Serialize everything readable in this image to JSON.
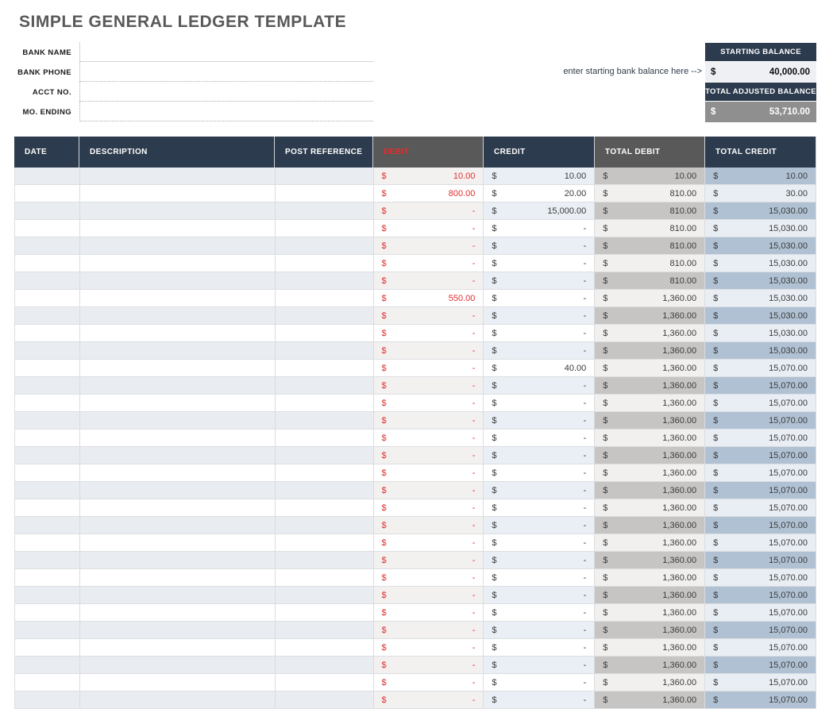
{
  "page": {
    "title": "SIMPLE GENERAL LEDGER TEMPLATE"
  },
  "form": {
    "fields": [
      {
        "label": "BANK NAME",
        "value": ""
      },
      {
        "label": "BANK PHONE",
        "value": ""
      },
      {
        "label": "ACCT NO.",
        "value": ""
      },
      {
        "label": "MO. ENDING",
        "value": ""
      }
    ]
  },
  "balance_panel": {
    "hint": "enter starting bank balance here -->",
    "starting_balance_label": "STARTING BALANCE",
    "starting_balance_value": "40,000.00",
    "total_adjusted_label": "TOTAL ADJUSTED BALANCE",
    "total_adjusted_value": "53,710.00"
  },
  "ledger": {
    "currency_symbol": "$",
    "columns": [
      {
        "key": "date",
        "label": "DATE"
      },
      {
        "key": "description",
        "label": "DESCRIPTION"
      },
      {
        "key": "post_reference",
        "label": "POST REFERENCE"
      },
      {
        "key": "debit",
        "label": "DEBIT"
      },
      {
        "key": "credit",
        "label": "CREDIT"
      },
      {
        "key": "total_debit",
        "label": "TOTAL DEBIT"
      },
      {
        "key": "total_credit",
        "label": "TOTAL CREDIT"
      }
    ],
    "rows": [
      {
        "date": "",
        "description": "",
        "post_reference": "",
        "debit": "10.00",
        "credit": "10.00",
        "total_debit": "10.00",
        "total_credit": "10.00"
      },
      {
        "date": "",
        "description": "",
        "post_reference": "",
        "debit": "800.00",
        "credit": "20.00",
        "total_debit": "810.00",
        "total_credit": "30.00"
      },
      {
        "date": "",
        "description": "",
        "post_reference": "",
        "debit": "-",
        "credit": "15,000.00",
        "total_debit": "810.00",
        "total_credit": "15,030.00"
      },
      {
        "date": "",
        "description": "",
        "post_reference": "",
        "debit": "-",
        "credit": "-",
        "total_debit": "810.00",
        "total_credit": "15,030.00"
      },
      {
        "date": "",
        "description": "",
        "post_reference": "",
        "debit": "-",
        "credit": "-",
        "total_debit": "810.00",
        "total_credit": "15,030.00"
      },
      {
        "date": "",
        "description": "",
        "post_reference": "",
        "debit": "-",
        "credit": "-",
        "total_debit": "810.00",
        "total_credit": "15,030.00"
      },
      {
        "date": "",
        "description": "",
        "post_reference": "",
        "debit": "-",
        "credit": "-",
        "total_debit": "810.00",
        "total_credit": "15,030.00"
      },
      {
        "date": "",
        "description": "",
        "post_reference": "",
        "debit": "550.00",
        "credit": "-",
        "total_debit": "1,360.00",
        "total_credit": "15,030.00"
      },
      {
        "date": "",
        "description": "",
        "post_reference": "",
        "debit": "-",
        "credit": "-",
        "total_debit": "1,360.00",
        "total_credit": "15,030.00"
      },
      {
        "date": "",
        "description": "",
        "post_reference": "",
        "debit": "-",
        "credit": "-",
        "total_debit": "1,360.00",
        "total_credit": "15,030.00"
      },
      {
        "date": "",
        "description": "",
        "post_reference": "",
        "debit": "-",
        "credit": "-",
        "total_debit": "1,360.00",
        "total_credit": "15,030.00"
      },
      {
        "date": "",
        "description": "",
        "post_reference": "",
        "debit": "-",
        "credit": "40.00",
        "total_debit": "1,360.00",
        "total_credit": "15,070.00"
      },
      {
        "date": "",
        "description": "",
        "post_reference": "",
        "debit": "-",
        "credit": "-",
        "total_debit": "1,360.00",
        "total_credit": "15,070.00"
      },
      {
        "date": "",
        "description": "",
        "post_reference": "",
        "debit": "-",
        "credit": "-",
        "total_debit": "1,360.00",
        "total_credit": "15,070.00"
      },
      {
        "date": "",
        "description": "",
        "post_reference": "",
        "debit": "-",
        "credit": "-",
        "total_debit": "1,360.00",
        "total_credit": "15,070.00"
      },
      {
        "date": "",
        "description": "",
        "post_reference": "",
        "debit": "-",
        "credit": "-",
        "total_debit": "1,360.00",
        "total_credit": "15,070.00"
      },
      {
        "date": "",
        "description": "",
        "post_reference": "",
        "debit": "-",
        "credit": "-",
        "total_debit": "1,360.00",
        "total_credit": "15,070.00"
      },
      {
        "date": "",
        "description": "",
        "post_reference": "",
        "debit": "-",
        "credit": "-",
        "total_debit": "1,360.00",
        "total_credit": "15,070.00"
      },
      {
        "date": "",
        "description": "",
        "post_reference": "",
        "debit": "-",
        "credit": "-",
        "total_debit": "1,360.00",
        "total_credit": "15,070.00"
      },
      {
        "date": "",
        "description": "",
        "post_reference": "",
        "debit": "-",
        "credit": "-",
        "total_debit": "1,360.00",
        "total_credit": "15,070.00"
      },
      {
        "date": "",
        "description": "",
        "post_reference": "",
        "debit": "-",
        "credit": "-",
        "total_debit": "1,360.00",
        "total_credit": "15,070.00"
      },
      {
        "date": "",
        "description": "",
        "post_reference": "",
        "debit": "-",
        "credit": "-",
        "total_debit": "1,360.00",
        "total_credit": "15,070.00"
      },
      {
        "date": "",
        "description": "",
        "post_reference": "",
        "debit": "-",
        "credit": "-",
        "total_debit": "1,360.00",
        "total_credit": "15,070.00"
      },
      {
        "date": "",
        "description": "",
        "post_reference": "",
        "debit": "-",
        "credit": "-",
        "total_debit": "1,360.00",
        "total_credit": "15,070.00"
      },
      {
        "date": "",
        "description": "",
        "post_reference": "",
        "debit": "-",
        "credit": "-",
        "total_debit": "1,360.00",
        "total_credit": "15,070.00"
      },
      {
        "date": "",
        "description": "",
        "post_reference": "",
        "debit": "-",
        "credit": "-",
        "total_debit": "1,360.00",
        "total_credit": "15,070.00"
      },
      {
        "date": "",
        "description": "",
        "post_reference": "",
        "debit": "-",
        "credit": "-",
        "total_debit": "1,360.00",
        "total_credit": "15,070.00"
      },
      {
        "date": "",
        "description": "",
        "post_reference": "",
        "debit": "-",
        "credit": "-",
        "total_debit": "1,360.00",
        "total_credit": "15,070.00"
      },
      {
        "date": "",
        "description": "",
        "post_reference": "",
        "debit": "-",
        "credit": "-",
        "total_debit": "1,360.00",
        "total_credit": "15,070.00"
      },
      {
        "date": "",
        "description": "",
        "post_reference": "",
        "debit": "-",
        "credit": "-",
        "total_debit": "1,360.00",
        "total_credit": "15,070.00"
      },
      {
        "date": "",
        "description": "",
        "post_reference": "",
        "debit": "-",
        "credit": "-",
        "total_debit": "1,360.00",
        "total_credit": "15,070.00"
      }
    ]
  },
  "colors": {
    "header_navy": "#2c3b4d",
    "header_gray": "#595959",
    "debit_text_red": "#e02f2f",
    "stripe_left": "#e9edf2",
    "stripe_total_debit": "#c7c5c3",
    "stripe_total_credit": "#b0c1d3",
    "total_adjusted_bg": "#8f8f8f",
    "starting_value_bg": "#eef0f3",
    "title_gray": "#595959"
  }
}
